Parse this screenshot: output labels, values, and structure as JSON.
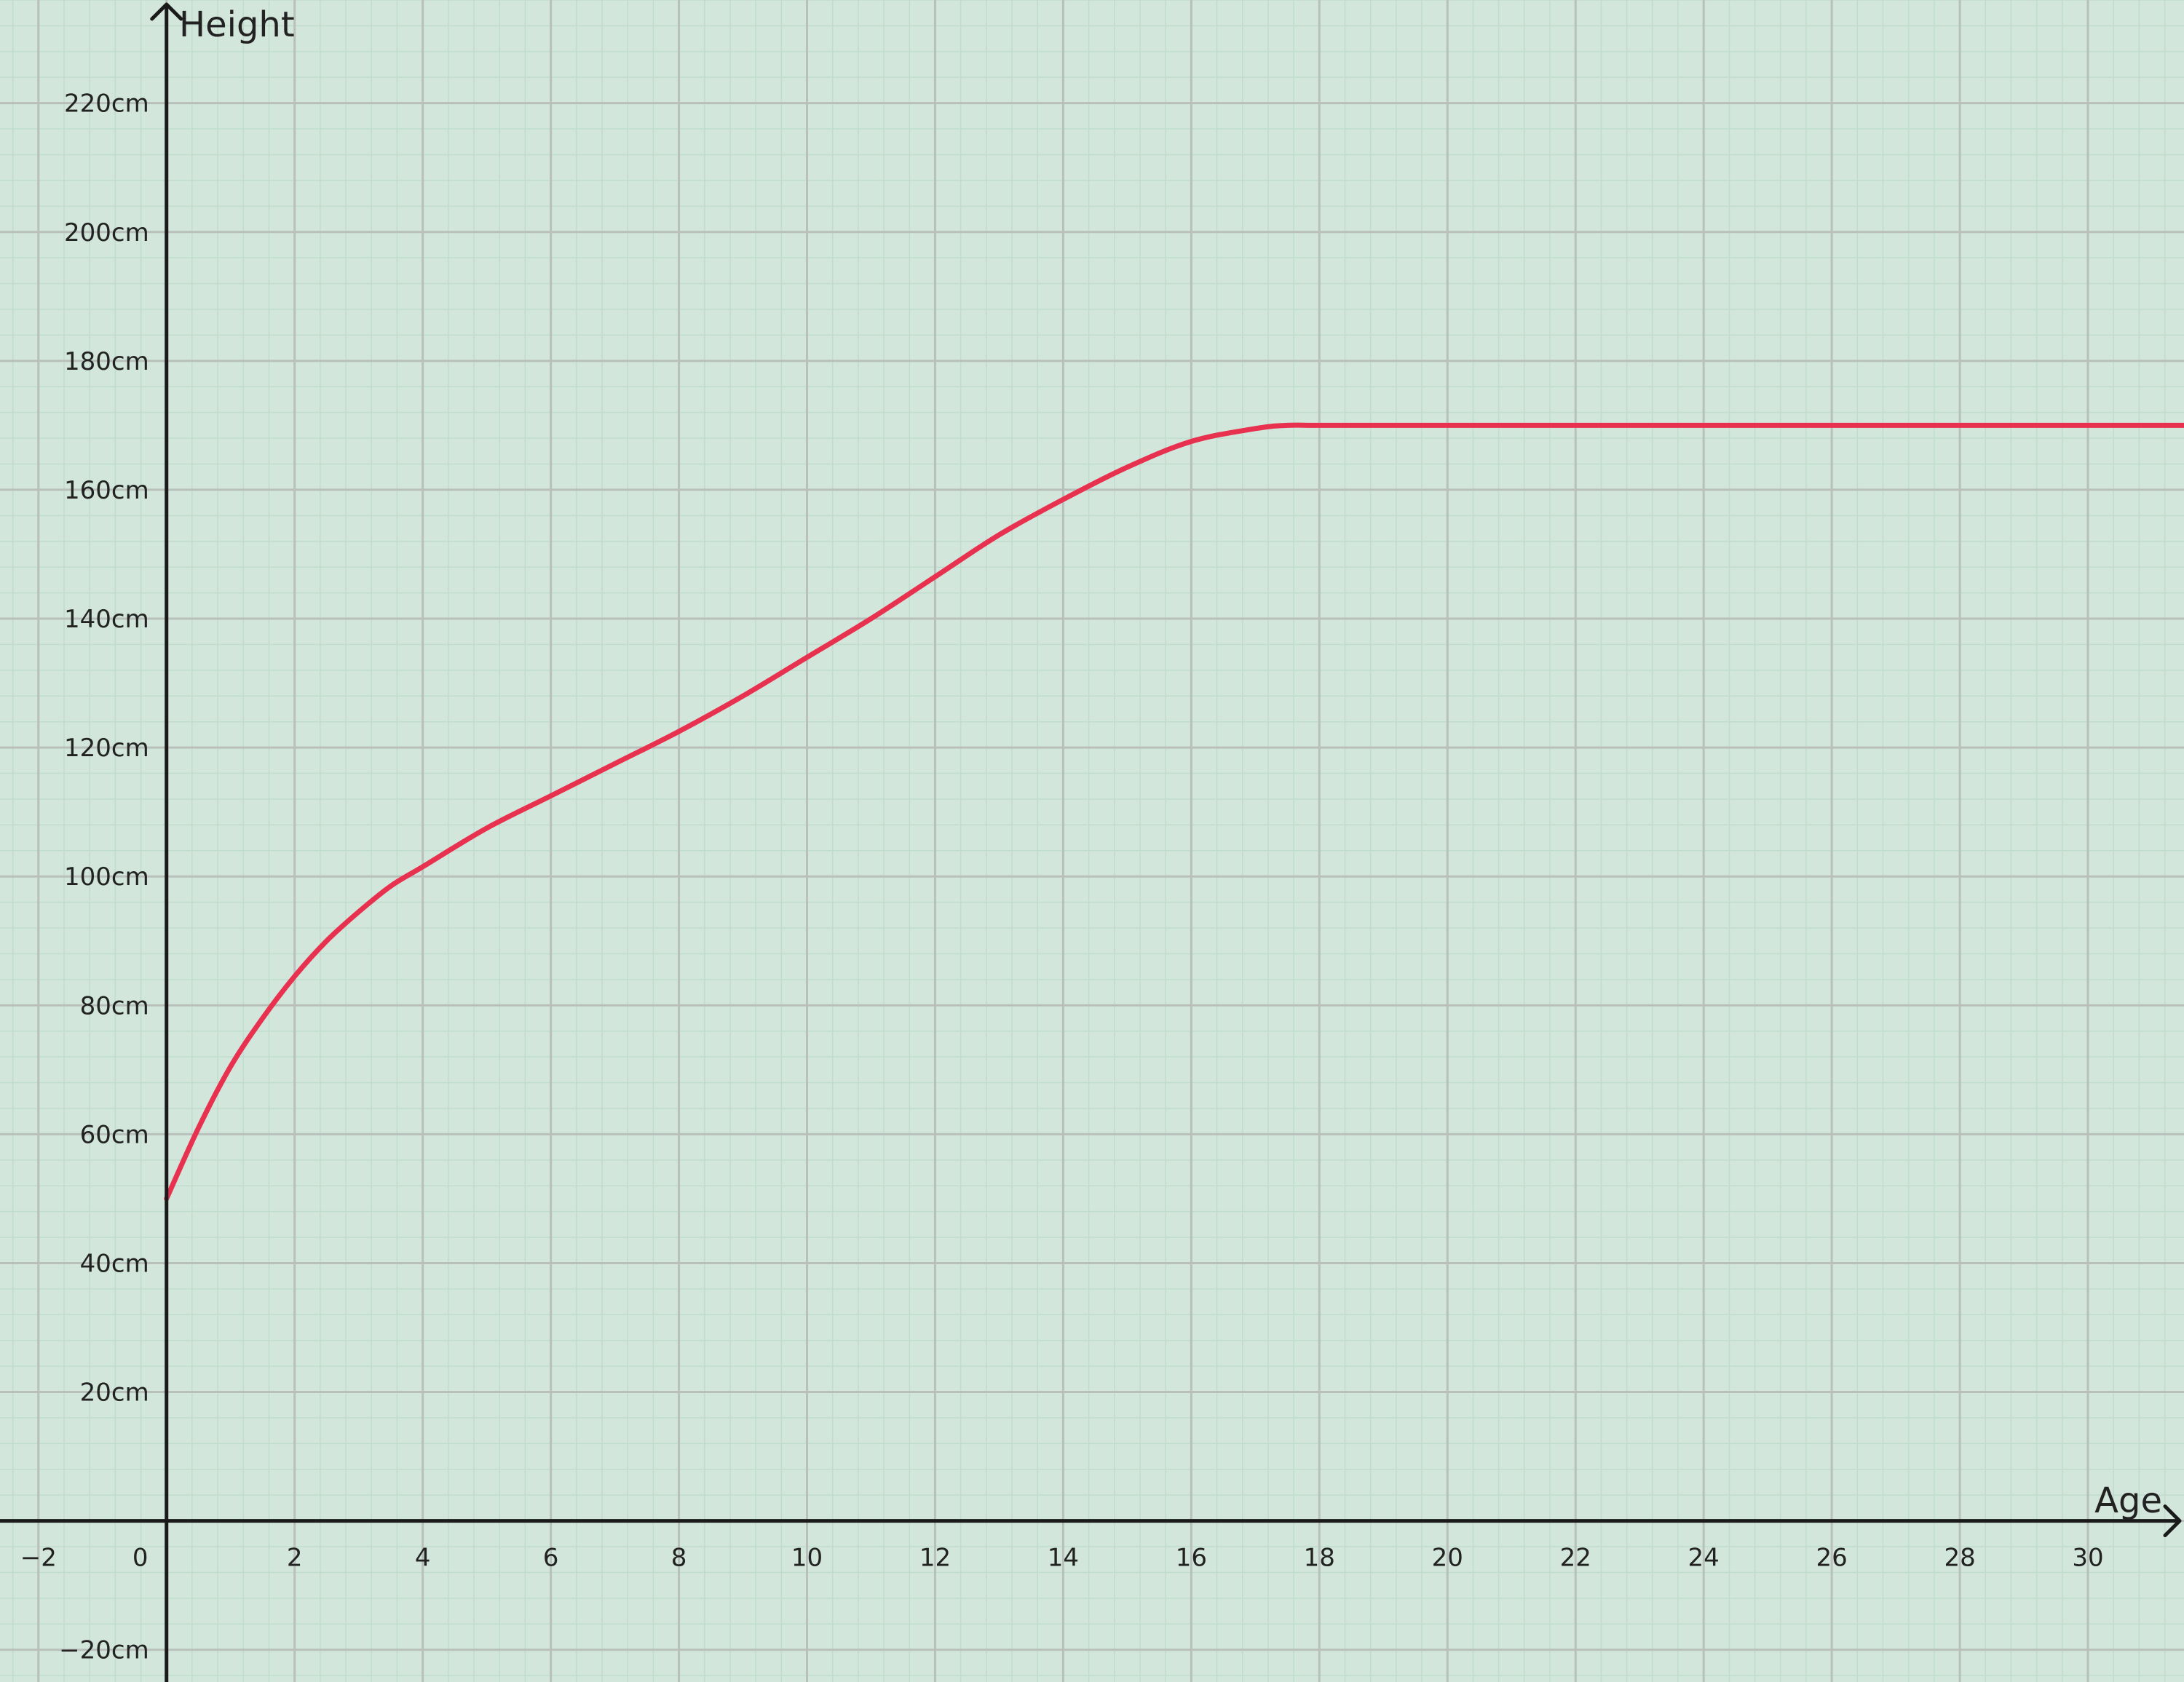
{
  "chart_data": {
    "type": "line",
    "title": "",
    "xlabel": "Age",
    "ylabel": "Height",
    "xlim": [
      -2.6,
      31.5
    ],
    "ylim": [
      -25,
      236
    ],
    "grid": true,
    "minor_grid": true,
    "x_ticks": [
      -2,
      0,
      2,
      4,
      6,
      8,
      10,
      12,
      14,
      16,
      18,
      20,
      22,
      24,
      26,
      28,
      30
    ],
    "x_tick_labels": [
      "−2",
      "0",
      "2",
      "4",
      "6",
      "8",
      "10",
      "12",
      "14",
      "16",
      "18",
      "20",
      "22",
      "24",
      "26",
      "28",
      "30"
    ],
    "y_ticks": [
      -20,
      20,
      40,
      60,
      80,
      100,
      120,
      140,
      160,
      180,
      200,
      220
    ],
    "y_tick_labels": [
      "−20cm",
      "20cm",
      "40cm",
      "60cm",
      "80cm",
      "100cm",
      "120cm",
      "140cm",
      "160cm",
      "180cm",
      "200cm",
      "220cm"
    ],
    "series": [
      {
        "color": "#e8304f",
        "x": [
          0,
          0.5,
          1,
          1.5,
          2,
          2.5,
          3,
          3.5,
          4,
          5,
          6,
          7,
          8,
          9,
          10,
          11,
          12,
          13,
          14,
          15,
          16,
          17,
          17.5,
          18,
          20,
          25,
          31.5
        ],
        "y": [
          50,
          61,
          70.5,
          78,
          84.5,
          90,
          94.5,
          98.5,
          101.5,
          107.5,
          112.5,
          117.5,
          122.5,
          128,
          134,
          140,
          146.5,
          153,
          158.5,
          163.5,
          167.5,
          169.5,
          170,
          170,
          170,
          170,
          170
        ]
      }
    ],
    "colors": {
      "background": "#d2e6dc",
      "major_grid": "#b9c0bb",
      "minor_grid": "#c0dccd",
      "axis": "#1a1a1a",
      "series": "#e8304f"
    }
  }
}
